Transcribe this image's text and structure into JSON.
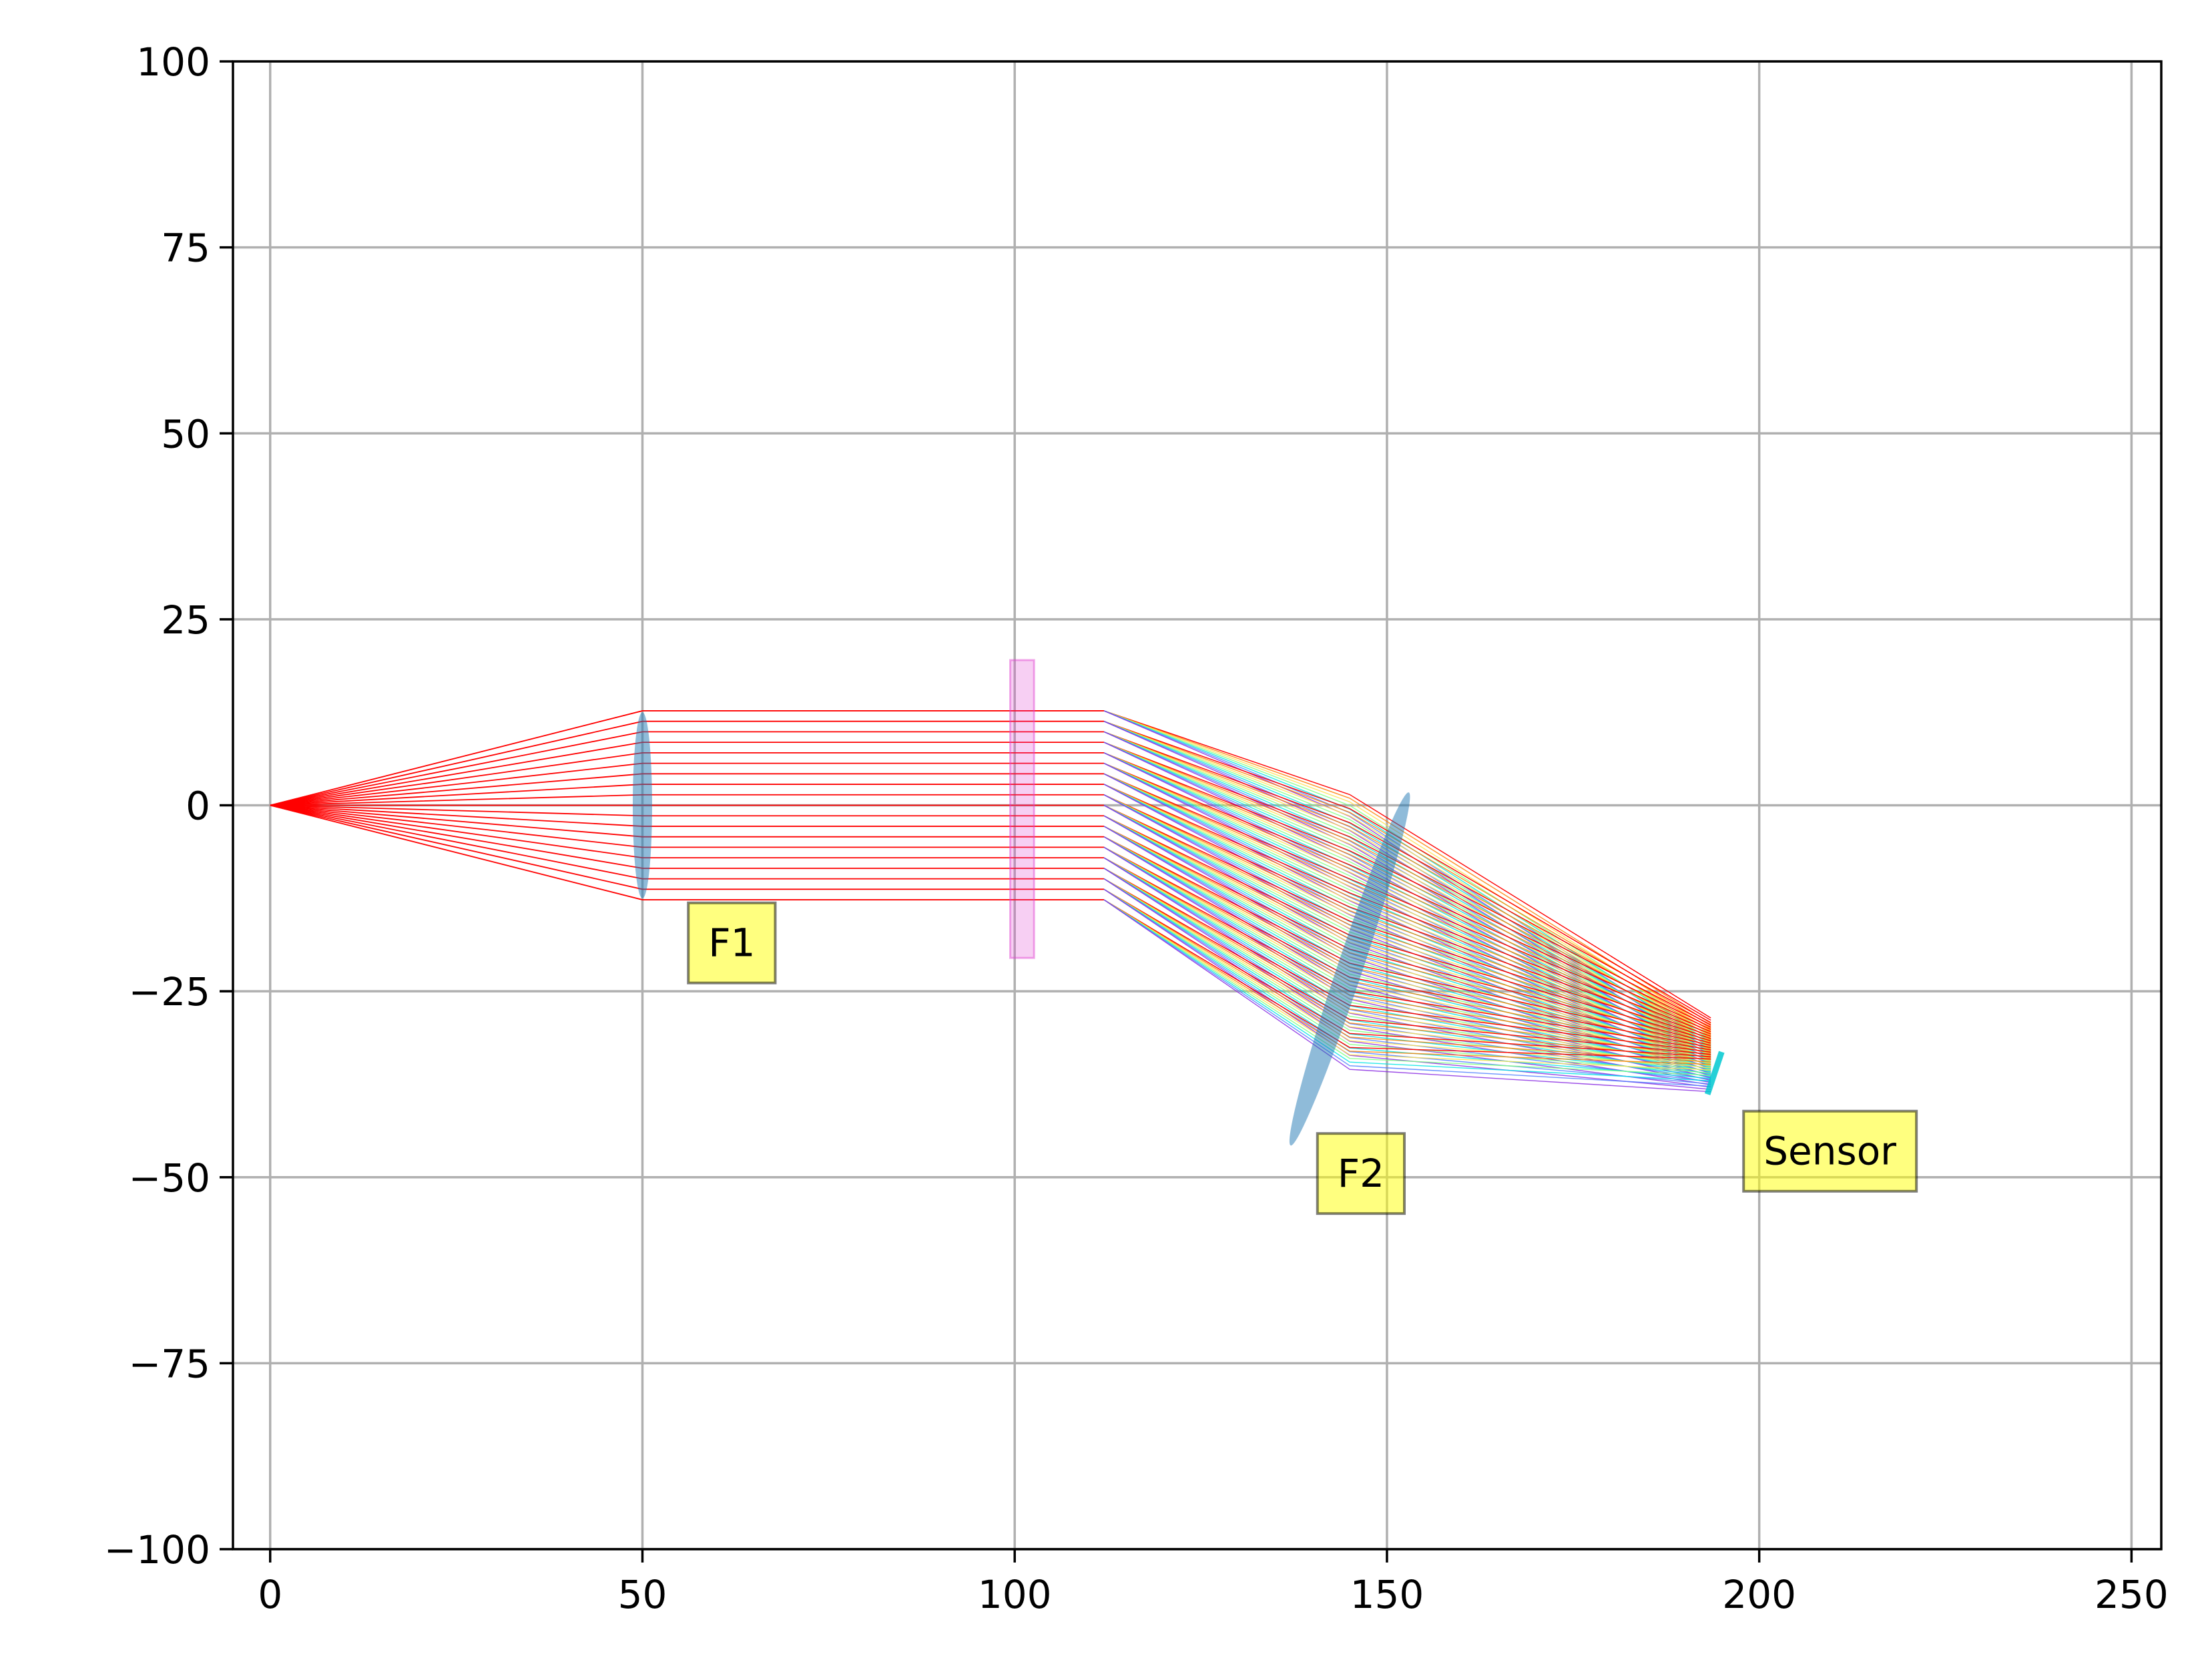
{
  "chart_data": {
    "type": "line",
    "title": "",
    "xlabel": "",
    "ylabel": "",
    "xlim": [
      -5,
      254
    ],
    "ylim": [
      -100,
      100
    ],
    "grid": true,
    "x_ticks": [
      0,
      50,
      100,
      150,
      200,
      250
    ],
    "y_ticks": [
      -100,
      -75,
      -50,
      -25,
      0,
      25,
      50,
      75,
      100
    ],
    "x_tick_labels": [
      "0",
      "50",
      "100",
      "150",
      "200",
      "250"
    ],
    "y_tick_labels": [
      "−100",
      "−75",
      "−50",
      "−25",
      "0",
      "25",
      "50",
      "75",
      "100"
    ],
    "source_point": [
      0,
      0
    ],
    "components": [
      {
        "name": "lens",
        "center": [
          50,
          0
        ],
        "length": 25,
        "width": 2.6,
        "angle_deg": 0
      },
      {
        "name": "beam_splitter",
        "center": [
          101,
          -0.5
        ],
        "length": 40,
        "width": 3.2,
        "angle_deg": -37.5
      },
      {
        "name": "lens",
        "center": [
          145,
          -22
        ],
        "length": 50,
        "width": 3.4,
        "angle_deg": -18.5
      },
      {
        "name": "sensor",
        "center": [
          194,
          -36
        ],
        "length": 6,
        "width": 0.8,
        "angle_deg": -18.5
      }
    ],
    "ray_bundle": {
      "x": [
        0,
        50,
        112,
        145,
        193.5
      ],
      "edge_upper_y": [
        0,
        12.7,
        12.7,
        -1.5,
        -33
      ],
      "edge_lower_y": [
        0,
        -12.7,
        -12.7,
        -35.5,
        -38.5
      ],
      "colors": [
        "#ff0000",
        "#ff7f00",
        "#ffe14d",
        "#7fff7f",
        "#00e5e5",
        "#4f7fff",
        "#8a2be2"
      ]
    },
    "annotations": [
      {
        "text": "F1",
        "x": 62,
        "y": -18.5
      },
      {
        "text": "F2",
        "x": 146.5,
        "y": -49.5
      },
      {
        "text": "Sensor",
        "x": 209.5,
        "y": -46.5
      }
    ],
    "colors": {
      "lens": "#1f77b4",
      "splitter": "#e040d0",
      "sensor": "#00c8d0",
      "annotation_fill": "#ffff00",
      "grid": "#b0b0b0"
    }
  }
}
